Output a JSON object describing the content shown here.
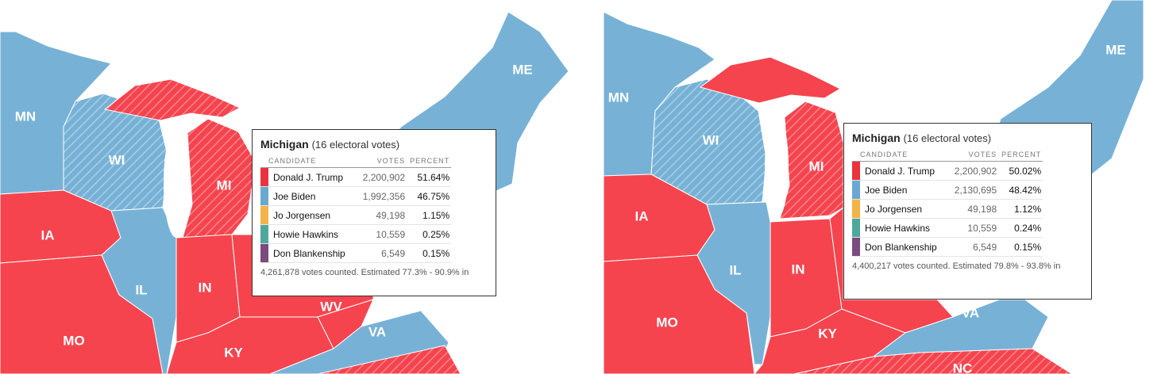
{
  "panels": [
    {
      "state_labels": [
        "MN",
        "WI",
        "MI",
        "IA",
        "IL",
        "IN",
        "MO",
        "KY",
        "WV",
        "VA",
        "ME"
      ],
      "tooltip": {
        "state": "Michigan",
        "electoral": "(16 electoral votes)",
        "headers": [
          "CANDIDATE",
          "VOTES",
          "PERCENT"
        ],
        "rows": [
          {
            "name": "Donald J. Trump",
            "votes": "2,200,902",
            "percent": "51.64%",
            "color": "#e8333d"
          },
          {
            "name": "Joe Biden",
            "votes": "1,992,356",
            "percent": "46.75%",
            "color": "#6aa8d2"
          },
          {
            "name": "Jo Jorgensen",
            "votes": "49,198",
            "percent": "1.15%",
            "color": "#f2b447"
          },
          {
            "name": "Howie Hawkins",
            "votes": "10,559",
            "percent": "0.25%",
            "color": "#4ea89a"
          },
          {
            "name": "Don Blankenship",
            "votes": "6,549",
            "percent": "0.15%",
            "color": "#7b4a7e"
          }
        ],
        "footer": "4,261,878 votes counted. Estimated 77.3% - 90.9% in"
      }
    },
    {
      "state_labels": [
        "MN",
        "WI",
        "MI",
        "IA",
        "IL",
        "IN",
        "MO",
        "KY",
        "VA",
        "ME",
        "NC"
      ],
      "tooltip": {
        "state": "Michigan",
        "electoral": "(16 electoral votes)",
        "headers": [
          "CANDIDATE",
          "VOTES",
          "PERCENT"
        ],
        "rows": [
          {
            "name": "Donald J. Trump",
            "votes": "2,200,902",
            "percent": "50.02%",
            "color": "#e8333d"
          },
          {
            "name": "Joe Biden",
            "votes": "2,130,695",
            "percent": "48.42%",
            "color": "#6aa8d2"
          },
          {
            "name": "Jo Jorgensen",
            "votes": "49,198",
            "percent": "1.12%",
            "color": "#f2b447"
          },
          {
            "name": "Howie Hawkins",
            "votes": "10,559",
            "percent": "0.24%",
            "color": "#4ea89a"
          },
          {
            "name": "Don Blankenship",
            "votes": "6,549",
            "percent": "0.15%",
            "color": "#7b4a7e"
          }
        ],
        "footer": "4,400,217 votes counted. Estimated 79.8% - 93.8% in"
      }
    }
  ]
}
